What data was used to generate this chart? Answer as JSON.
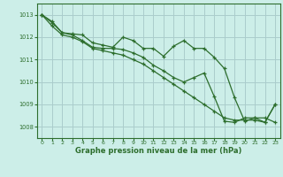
{
  "background_color": "#cceee8",
  "plot_bg_color": "#cceee8",
  "grid_color": "#aacccc",
  "line_color": "#2d6e2d",
  "marker_color": "#2d6e2d",
  "xlabel": "Graphe pression niveau de la mer (hPa)",
  "ylim": [
    1007.5,
    1013.5
  ],
  "xlim": [
    -0.5,
    23.5
  ],
  "yticks": [
    1008,
    1009,
    1010,
    1011,
    1012,
    1013
  ],
  "xticks": [
    0,
    1,
    2,
    3,
    4,
    5,
    6,
    7,
    8,
    9,
    10,
    11,
    12,
    13,
    14,
    15,
    16,
    17,
    18,
    19,
    20,
    21,
    22,
    23
  ],
  "series1": [
    1013.0,
    1012.7,
    1012.2,
    1012.15,
    1012.1,
    1011.75,
    1011.65,
    1011.55,
    1012.0,
    1011.85,
    1011.5,
    1011.5,
    1011.15,
    1011.6,
    1011.85,
    1011.5,
    1011.5,
    1011.1,
    1010.6,
    1009.3,
    1008.25,
    1008.4,
    1008.4,
    1008.2
  ],
  "series2": [
    1013.0,
    1012.65,
    1012.2,
    1012.1,
    1011.85,
    1011.55,
    1011.5,
    1011.5,
    1011.45,
    1011.3,
    1011.1,
    1010.75,
    1010.5,
    1010.2,
    1010.0,
    1010.2,
    1010.4,
    1009.35,
    1008.25,
    1008.2,
    1008.4,
    1008.4,
    1008.2,
    1009.0
  ],
  "series3": [
    1013.0,
    1012.5,
    1012.1,
    1012.0,
    1011.8,
    1011.5,
    1011.4,
    1011.3,
    1011.2,
    1011.0,
    1010.8,
    1010.5,
    1010.2,
    1009.9,
    1009.6,
    1009.3,
    1009.0,
    1008.7,
    1008.4,
    1008.3,
    1008.3,
    1008.3,
    1008.2,
    1009.0
  ]
}
